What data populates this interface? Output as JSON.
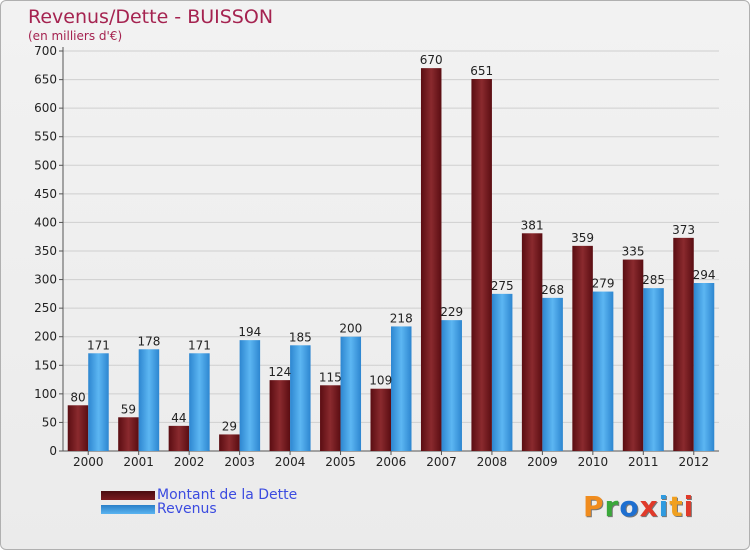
{
  "title": "Revenus/Dette - BUISSON",
  "subtitle": "(en milliers d'€)",
  "colors": {
    "dette": "#7a1a1f",
    "revenus": "#3d9be0",
    "title": "#a52350",
    "legend_text": "#3b4be0"
  },
  "chart_data": {
    "type": "bar",
    "title": "Revenus/Dette - BUISSON",
    "ylabel": "(en milliers d'€)",
    "xlabel": "",
    "categories": [
      "2000",
      "2001",
      "2002",
      "2003",
      "2004",
      "2005",
      "2006",
      "2007",
      "2008",
      "2009",
      "2010",
      "2011",
      "2012"
    ],
    "series": [
      {
        "name": "Montant de la Dette",
        "values": [
          80,
          59,
          44,
          29,
          124,
          115,
          109,
          670,
          651,
          381,
          359,
          335,
          373
        ]
      },
      {
        "name": "Revenus",
        "values": [
          171,
          178,
          171,
          194,
          185,
          200,
          218,
          229,
          275,
          268,
          279,
          285,
          294
        ]
      }
    ],
    "ylim": [
      0,
      700
    ],
    "yticks": [
      "0",
      "50",
      "100",
      "150",
      "200",
      "250",
      "300",
      "350",
      "400",
      "450",
      "500",
      "550",
      "600",
      "650",
      "700"
    ],
    "grid": true,
    "legend": "bottom-left"
  },
  "legend": {
    "dette": "Montant de la Dette",
    "revenus": "Revenus"
  },
  "logo": {
    "text": "Proxiti",
    "letters": [
      "P",
      "r",
      "o",
      "x",
      "i",
      "t",
      "i"
    ],
    "letter_colors": [
      "#f08c1e",
      "#3aa83a",
      "#1e6fd0",
      "#e03a2a",
      "#2f9be0",
      "#f0a020",
      "#e03a2a"
    ]
  }
}
